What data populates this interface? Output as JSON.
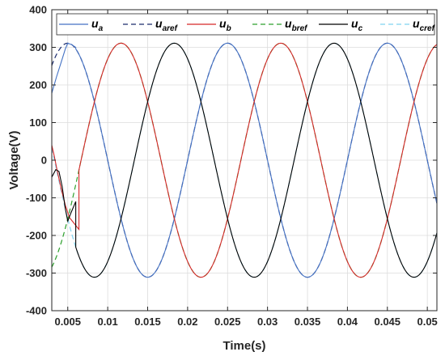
{
  "chart_data": {
    "type": "line",
    "title": "",
    "xlabel": "Time(s)",
    "ylabel": "Voltage(V)",
    "xlim": [
      0.003,
      0.0512
    ],
    "ylim": [
      -400,
      400
    ],
    "xticks": [
      0.005,
      0.01,
      0.015,
      0.02,
      0.025,
      0.03,
      0.035,
      0.04,
      0.045,
      0.05
    ],
    "xtick_labels": [
      "0.005",
      "0.01",
      "0.015",
      "0.02",
      "0.025",
      "0.03",
      "0.035",
      "0.04",
      "0.045",
      "0.05"
    ],
    "yticks": [
      -400,
      -300,
      -200,
      -100,
      0,
      100,
      200,
      300,
      400
    ],
    "ytick_labels": [
      "-400",
      "-300",
      "-200",
      "-100",
      "0",
      "100",
      "200",
      "300",
      "400"
    ],
    "grid": true,
    "legend_position": "top",
    "amplitude": 311,
    "frequency_hz": 50,
    "series": [
      {
        "name": "u",
        "sub": "a",
        "color": "#4472c4",
        "style": "solid",
        "phase_deg": 0,
        "transient": [
          [
            0.003,
            178
          ],
          [
            0.0036,
            222
          ],
          [
            0.0042,
            262
          ],
          [
            0.0047,
            296
          ],
          [
            0.005,
            311
          ],
          [
            0.0055,
            307
          ],
          [
            0.006,
            300
          ]
        ]
      },
      {
        "name": "u",
        "sub": "aref",
        "color": "#1a2a6c",
        "style": "dashed",
        "phase_deg": 0,
        "transient": null
      },
      {
        "name": "u",
        "sub": "b",
        "color": "#d62728",
        "style": "solid",
        "phase_deg": -120,
        "transient": [
          [
            0.003,
            40
          ],
          [
            0.0033,
            12
          ],
          [
            0.0037,
            -30
          ],
          [
            0.0042,
            -78
          ],
          [
            0.0047,
            -120
          ],
          [
            0.0052,
            -152
          ],
          [
            0.0058,
            -168
          ],
          [
            0.0064,
            -184
          ]
        ]
      },
      {
        "name": "u",
        "sub": "bref",
        "color": "#2ca02c",
        "style": "dashed",
        "phase_deg": -120,
        "transient": null
      },
      {
        "name": "u",
        "sub": "c",
        "color": "#000000",
        "style": "solid",
        "phase_deg": 120,
        "transient": [
          [
            0.003,
            -45
          ],
          [
            0.0035,
            -25
          ],
          [
            0.0039,
            -30
          ],
          [
            0.0043,
            -70
          ],
          [
            0.0047,
            -130
          ],
          [
            0.005,
            -162
          ],
          [
            0.0054,
            -140
          ],
          [
            0.006,
            -110
          ]
        ]
      },
      {
        "name": "u",
        "sub": "cref",
        "color": "#7fd3f0",
        "style": "dashed",
        "phase_deg": 120,
        "transient": null
      }
    ]
  }
}
